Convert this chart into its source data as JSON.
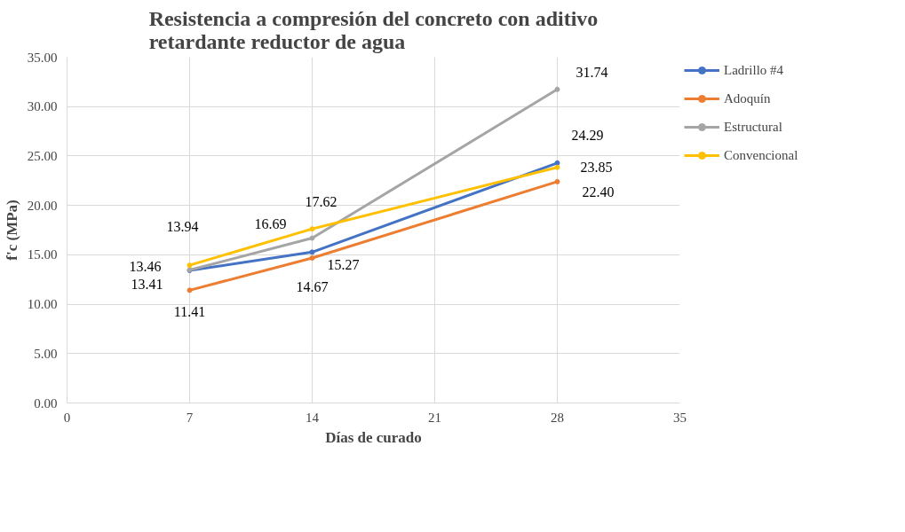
{
  "chart_data": {
    "type": "line",
    "title": "Resistencia a compresión del concreto con aditivo\nretardante reductor de agua",
    "xlabel": "Días de curado",
    "ylabel": "f'c (MPa)",
    "x": [
      7,
      14,
      28
    ],
    "series": [
      {
        "name": "Ladrillo #4",
        "color": "#4472c4",
        "values": [
          13.41,
          15.27,
          24.29
        ],
        "value_labels": [
          "13.41",
          "15.27",
          "24.29"
        ]
      },
      {
        "name": "Adoquín",
        "color": "#ed7d31",
        "values": [
          11.41,
          14.67,
          22.4
        ],
        "value_labels": [
          "11.41",
          "14.67",
          "22.40"
        ]
      },
      {
        "name": "Estructural",
        "color": "#a5a5a5",
        "values": [
          13.46,
          16.69,
          31.74
        ],
        "value_labels": [
          "13.46",
          "16.69",
          "31.74"
        ]
      },
      {
        "name": "Convencional",
        "color": "#ffc000",
        "values": [
          13.94,
          17.62,
          23.85
        ],
        "value_labels": [
          "13.94",
          "17.62",
          "23.85"
        ]
      }
    ],
    "xlim": [
      0,
      35
    ],
    "xticks": [
      0,
      7,
      14,
      21,
      28,
      35
    ],
    "ylim": [
      0,
      35
    ],
    "yticks": [
      {
        "value": 0,
        "label": "0.00"
      },
      {
        "value": 5,
        "label": "5.00"
      },
      {
        "value": 10,
        "label": "10.00"
      },
      {
        "value": 15,
        "label": "15.00"
      },
      {
        "value": 20,
        "label": "20.00"
      },
      {
        "value": 25,
        "label": "25.00"
      },
      {
        "value": 30,
        "label": "30.00"
      },
      {
        "value": 35,
        "label": "35.00"
      }
    ],
    "grid": true,
    "legend": "right",
    "marker": "circle",
    "line_style": "solid"
  }
}
